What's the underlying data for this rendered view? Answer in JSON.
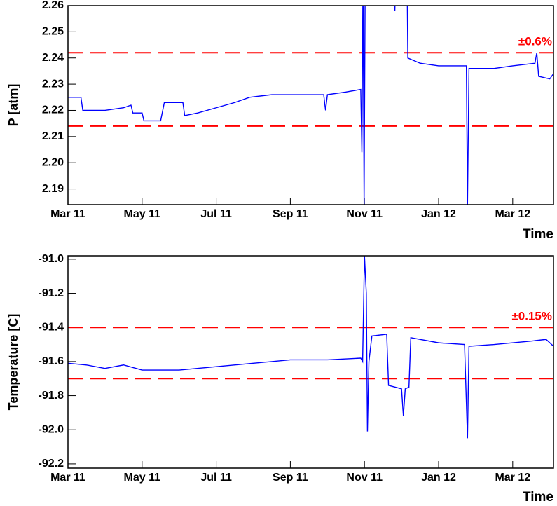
{
  "chart_data": [
    {
      "type": "line",
      "y_label": "P [atm]",
      "x_label": "Time",
      "annotation": "±0.6%",
      "xlim": [
        0,
        13.1
      ],
      "xticks": [
        {
          "value": 0,
          "label": "Mar 11"
        },
        {
          "value": 2,
          "label": "May 11"
        },
        {
          "value": 4,
          "label": "Jul 11"
        },
        {
          "value": 6,
          "label": "Sep 11"
        },
        {
          "value": 8,
          "label": "Nov 11"
        },
        {
          "value": 10,
          "label": "Jan 12"
        },
        {
          "value": 12,
          "label": "Mar 12"
        }
      ],
      "ylim": [
        2.184,
        2.26
      ],
      "yticks": [
        2.19,
        {
          "value": 2.2,
          "label": "2.20"
        },
        2.21,
        2.22,
        2.23,
        2.24,
        2.25,
        2.26
      ],
      "hlines": [
        2.242,
        2.214
      ],
      "hline_color": "#ff0000",
      "series": [
        {
          "color": "#0000ff",
          "x": [
            0,
            0.35,
            0.4,
            1.0,
            1.5,
            1.7,
            1.75,
            2.0,
            2.05,
            2.5,
            2.6,
            3.1,
            3.15,
            3.5,
            4.0,
            4.5,
            4.9,
            5.5,
            6.5,
            6.9,
            6.95,
            7.0,
            7.5,
            7.9,
            7.93,
            7.96,
            7.99,
            8.02,
            8.8,
            8.82,
            8.84,
            9.15,
            9.17,
            9.5,
            10.0,
            10.5,
            10.75,
            10.78,
            10.82,
            11.5,
            12.0,
            12.6,
            12.65,
            12.7,
            13.0,
            13.1
          ],
          "values": [
            2.225,
            2.225,
            2.22,
            2.22,
            2.221,
            2.222,
            2.219,
            2.219,
            2.216,
            2.216,
            2.223,
            2.223,
            2.218,
            2.219,
            2.221,
            2.223,
            2.225,
            2.226,
            2.226,
            2.226,
            2.22,
            2.226,
            2.227,
            2.228,
            2.204,
            2.27,
            2.184,
            2.27,
            2.27,
            2.258,
            2.27,
            2.27,
            2.24,
            2.238,
            2.237,
            2.237,
            2.237,
            2.184,
            2.236,
            2.236,
            2.237,
            2.238,
            2.242,
            2.233,
            2.232,
            2.234
          ]
        }
      ]
    },
    {
      "type": "line",
      "y_label": "Temperature [C]",
      "x_label": "Time",
      "annotation": "±0.15%",
      "xlim": [
        0,
        13.1
      ],
      "xticks": [
        {
          "value": 0,
          "label": "Mar 11"
        },
        {
          "value": 2,
          "label": "May 11"
        },
        {
          "value": 4,
          "label": "Jul 11"
        },
        {
          "value": 6,
          "label": "Sep 11"
        },
        {
          "value": 8,
          "label": "Nov 11"
        },
        {
          "value": 10,
          "label": "Jan 12"
        },
        {
          "value": 12,
          "label": "Mar 12"
        }
      ],
      "ylim": [
        -92.225,
        -90.98
      ],
      "yticks": [
        -92.2,
        {
          "value": -92.0,
          "label": "-92.0"
        },
        -91.8,
        -91.6,
        -91.4,
        -91.2,
        {
          "value": -91.0,
          "label": "-91.0"
        }
      ],
      "hlines": [
        -91.4,
        -91.7
      ],
      "hline_color": "#ff0000",
      "series": [
        {
          "color": "#0000ff",
          "x": [
            0,
            0.5,
            1.0,
            1.5,
            2.0,
            2.5,
            3.0,
            4.0,
            5.0,
            6.0,
            7.0,
            7.9,
            7.95,
            8.0,
            8.05,
            8.08,
            8.12,
            8.2,
            8.6,
            8.65,
            9.0,
            9.05,
            9.1,
            9.2,
            9.25,
            10.0,
            10.7,
            10.78,
            10.82,
            11.5,
            12.5,
            12.9,
            13.1
          ],
          "values": [
            -91.61,
            -91.62,
            -91.64,
            -91.62,
            -91.65,
            -91.65,
            -91.65,
            -91.63,
            -91.61,
            -91.59,
            -91.59,
            -91.58,
            -91.6,
            -90.98,
            -91.2,
            -92.01,
            -91.6,
            -91.45,
            -91.44,
            -91.74,
            -91.76,
            -91.92,
            -91.76,
            -91.75,
            -91.46,
            -91.49,
            -91.5,
            -92.05,
            -91.51,
            -91.5,
            -91.48,
            -91.47,
            -91.51
          ]
        }
      ]
    }
  ]
}
